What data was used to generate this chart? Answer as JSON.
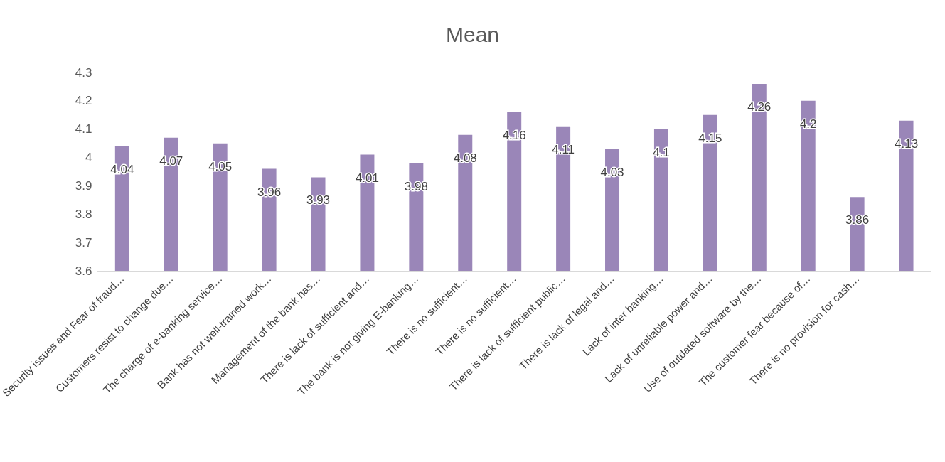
{
  "chart_data": {
    "type": "bar",
    "title": "Mean",
    "categories": [
      "Security issues and Fear of fraud…",
      "Customers resist to change due…",
      "The charge of e-banking service…",
      "Bank has not well-trained work…",
      "Management of the bank has…",
      "There is lack of sufficient and…",
      "The bank is not giving E-banking…",
      "There is no sufficient…",
      "There is no sufficient…",
      "There is lack of sufficient public…",
      "There is lack of legal and…",
      "Lack of inter banking…",
      "Lack of unreliable power and…",
      "Use of outdated software by the…",
      "The customer fear because of…",
      "There is no provision for cash…",
      null
    ],
    "values": [
      4.04,
      4.07,
      4.05,
      3.96,
      3.93,
      4.01,
      3.98,
      4.08,
      4.16,
      4.11,
      4.03,
      4.1,
      4.15,
      4.26,
      4.2,
      3.86,
      4.13
    ],
    "color": "#9a86b8",
    "ylim": [
      3.6,
      4.3
    ],
    "yticks": [
      3.6,
      3.7,
      3.8,
      3.9,
      4,
      4.1,
      4.2,
      4.3
    ],
    "grid": false,
    "data_labels": true
  }
}
